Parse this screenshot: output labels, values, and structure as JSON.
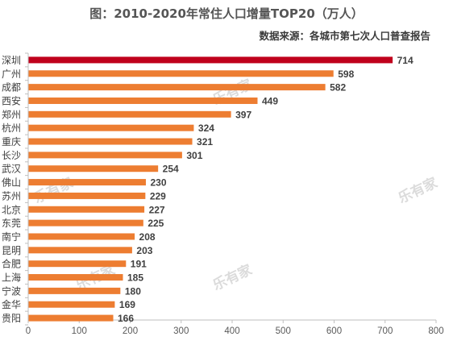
{
  "title": "图：2010-2020年常住人口增量TOP20（万人）",
  "subtitle": "数据来源：各城市第七次人口普查报告",
  "watermark": "乐有家",
  "chart_data": {
    "type": "bar",
    "orientation": "horizontal",
    "categories": [
      "深圳",
      "广州",
      "成都",
      "西安",
      "郑州",
      "杭州",
      "重庆",
      "长沙",
      "武汉",
      "佛山",
      "苏州",
      "北京",
      "东莞",
      "南宁",
      "昆明",
      "合肥",
      "上海",
      "宁波",
      "金华",
      "贵阳"
    ],
    "values": [
      714,
      598,
      582,
      449,
      397,
      324,
      321,
      301,
      254,
      230,
      229,
      227,
      225,
      208,
      203,
      191,
      185,
      180,
      169,
      166
    ],
    "xlim": [
      0,
      800
    ],
    "xticks": [
      0,
      100,
      200,
      300,
      400,
      500,
      600,
      700,
      800
    ],
    "grid": false,
    "colors": {
      "highlight": "#c0001c",
      "bar": "#ed7d31"
    }
  }
}
